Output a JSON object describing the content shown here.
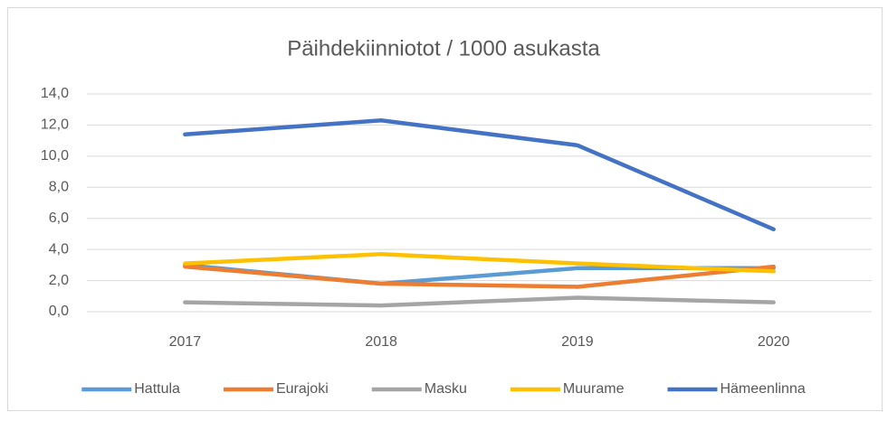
{
  "chart_data": {
    "type": "line",
    "title": "Päihdekiinniotot / 1000 asukasta",
    "categories": [
      "2017",
      "2018",
      "2019",
      "2020"
    ],
    "series": [
      {
        "name": "Hattula",
        "color": "#5b9bd5",
        "values": [
          3.0,
          1.8,
          2.8,
          2.8
        ]
      },
      {
        "name": "Eurajoki",
        "color": "#ed7d31",
        "values": [
          2.9,
          1.8,
          1.6,
          2.9
        ]
      },
      {
        "name": "Masku",
        "color": "#a5a5a5",
        "values": [
          0.6,
          0.4,
          0.9,
          0.6
        ]
      },
      {
        "name": "Muurame",
        "color": "#ffc000",
        "values": [
          3.1,
          3.7,
          3.1,
          2.6
        ]
      },
      {
        "name": "Hämeenlinna",
        "color": "#4472c4",
        "values": [
          11.4,
          12.3,
          10.7,
          5.3
        ]
      }
    ],
    "ylim": [
      0,
      14
    ],
    "yticks": [
      {
        "value": 0,
        "label": "0,0"
      },
      {
        "value": 2,
        "label": "2,0"
      },
      {
        "value": 4,
        "label": "4,0"
      },
      {
        "value": 6,
        "label": "6,0"
      },
      {
        "value": 8,
        "label": "8,0"
      },
      {
        "value": 10,
        "label": "10,0"
      },
      {
        "value": 12,
        "label": "12,0"
      },
      {
        "value": 14,
        "label": "14,0"
      }
    ],
    "grid": true,
    "legend": "bottom"
  }
}
